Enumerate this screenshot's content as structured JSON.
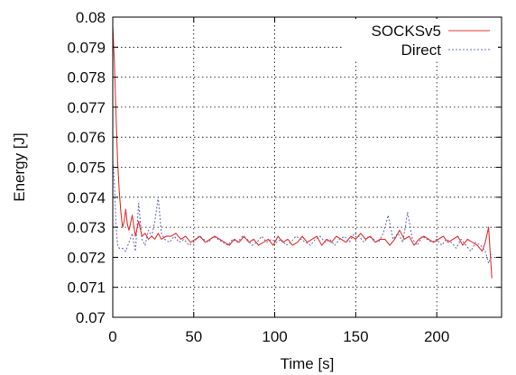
{
  "chart_data": {
    "type": "line",
    "xlabel": "Time [s]",
    "ylabel": "Energy [J]",
    "xlim": [
      0,
      240
    ],
    "ylim": [
      0.07,
      0.08
    ],
    "x_ticks": [
      0,
      50,
      100,
      150,
      200
    ],
    "x_tick_labels": [
      "0",
      "50",
      "100",
      "150",
      "200"
    ],
    "y_ticks": [
      0.07,
      0.071,
      0.072,
      0.073,
      0.074,
      0.075,
      0.076,
      0.077,
      0.078,
      0.079,
      0.08
    ],
    "y_tick_labels": [
      "0.07",
      "0.071",
      "0.072",
      "0.073",
      "0.074",
      "0.075",
      "0.076",
      "0.077",
      "0.078",
      "0.079",
      "0.08"
    ],
    "grid": true,
    "legend_position": "top-right",
    "series": [
      {
        "name": "SOCKSv5",
        "color": "#e3342f",
        "style": "solid",
        "x": [
          0,
          1,
          2,
          3,
          4,
          5,
          6,
          7,
          8,
          9,
          10,
          12,
          14,
          16,
          18,
          20,
          22,
          24,
          26,
          28,
          30,
          33,
          36,
          39,
          42,
          45,
          48,
          51,
          54,
          57,
          60,
          63,
          66,
          69,
          72,
          75,
          78,
          81,
          84,
          87,
          90,
          93,
          96,
          99,
          102,
          105,
          108,
          111,
          114,
          117,
          120,
          123,
          126,
          129,
          132,
          135,
          138,
          141,
          144,
          147,
          150,
          153,
          156,
          159,
          162,
          165,
          168,
          171,
          174,
          177,
          180,
          183,
          186,
          189,
          192,
          195,
          198,
          201,
          204,
          207,
          210,
          213,
          216,
          219,
          222,
          225,
          228,
          230,
          232,
          234
        ],
        "y": [
          0.0797,
          0.0785,
          0.0768,
          0.0752,
          0.0742,
          0.0735,
          0.073,
          0.0732,
          0.0736,
          0.0731,
          0.0729,
          0.0734,
          0.0727,
          0.0732,
          0.0727,
          0.0728,
          0.0726,
          0.0727,
          0.0726,
          0.0728,
          0.0726,
          0.0727,
          0.0727,
          0.0728,
          0.0726,
          0.0727,
          0.0725,
          0.0726,
          0.0727,
          0.0725,
          0.0726,
          0.0727,
          0.0726,
          0.0725,
          0.0724,
          0.0726,
          0.0725,
          0.0727,
          0.0725,
          0.0726,
          0.0724,
          0.0725,
          0.0726,
          0.0724,
          0.0727,
          0.0725,
          0.0726,
          0.0724,
          0.0725,
          0.0727,
          0.0725,
          0.0726,
          0.0727,
          0.0724,
          0.0726,
          0.0725,
          0.0727,
          0.0726,
          0.0725,
          0.0727,
          0.0726,
          0.0728,
          0.0726,
          0.0727,
          0.0725,
          0.0726,
          0.0726,
          0.0724,
          0.0726,
          0.0729,
          0.0726,
          0.0727,
          0.0724,
          0.0726,
          0.0727,
          0.0726,
          0.0725,
          0.0726,
          0.0727,
          0.0725,
          0.0726,
          0.0727,
          0.0724,
          0.0726,
          0.0725,
          0.0724,
          0.0722,
          0.0725,
          0.073,
          0.0713
        ]
      },
      {
        "name": "Direct",
        "color": "#6b6fc4",
        "style": "dotted",
        "x": [
          0,
          1,
          2,
          3,
          4,
          6,
          8,
          10,
          12,
          14,
          16,
          18,
          20,
          22,
          24,
          26,
          28,
          30,
          32,
          35,
          38,
          41,
          44,
          47,
          50,
          53,
          56,
          59,
          62,
          65,
          68,
          71,
          74,
          77,
          80,
          83,
          86,
          89,
          92,
          95,
          98,
          101,
          104,
          107,
          110,
          113,
          116,
          119,
          122,
          125,
          128,
          131,
          134,
          137,
          140,
          143,
          146,
          149,
          152,
          155,
          158,
          161,
          164,
          167,
          170,
          173,
          176,
          179,
          182,
          185,
          188,
          191,
          194,
          197,
          200,
          203,
          206,
          209,
          212,
          215,
          218,
          221,
          224,
          227,
          230,
          232,
          234
        ],
        "y": [
          0.0752,
          0.0745,
          0.0731,
          0.0724,
          0.0723,
          0.0723,
          0.0722,
          0.0725,
          0.0728,
          0.0722,
          0.0738,
          0.0726,
          0.0724,
          0.0729,
          0.0727,
          0.0732,
          0.074,
          0.0728,
          0.0726,
          0.0725,
          0.0727,
          0.0725,
          0.0726,
          0.0724,
          0.0725,
          0.0727,
          0.0726,
          0.0725,
          0.0727,
          0.0726,
          0.0725,
          0.0724,
          0.0726,
          0.0725,
          0.0727,
          0.0726,
          0.0724,
          0.0725,
          0.0727,
          0.0725,
          0.0726,
          0.0725,
          0.0726,
          0.0724,
          0.0725,
          0.0727,
          0.0726,
          0.0725,
          0.0724,
          0.0726,
          0.0727,
          0.0725,
          0.0726,
          0.0724,
          0.0726,
          0.0727,
          0.0725,
          0.0728,
          0.0727,
          0.0725,
          0.0727,
          0.0726,
          0.0725,
          0.0728,
          0.0734,
          0.0726,
          0.0728,
          0.0725,
          0.0735,
          0.0726,
          0.0724,
          0.0727,
          0.0726,
          0.0725,
          0.0726,
          0.0724,
          0.0726,
          0.0725,
          0.0723,
          0.0726,
          0.0724,
          0.0722,
          0.0725,
          0.0724,
          0.0722,
          0.0718,
          0.0721
        ]
      }
    ]
  }
}
